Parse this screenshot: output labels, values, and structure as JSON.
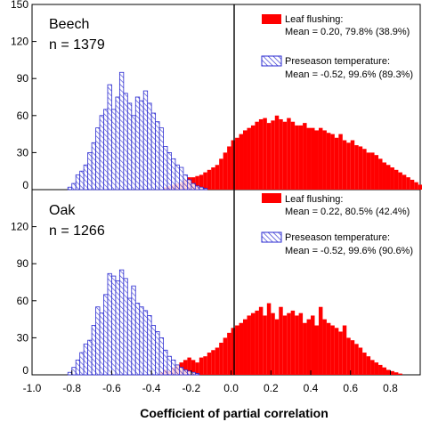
{
  "chart_data": [
    {
      "type": "bar",
      "panel": "top",
      "species_label": "Beech",
      "n_label": "n = 1379",
      "x_range": [
        -1.0,
        1.0
      ],
      "ylim": [
        0,
        150
      ],
      "y_ticks": [
        "0",
        "30",
        "60",
        "90",
        "120",
        "150"
      ],
      "series": [
        {
          "name": "Leaf flushing:",
          "stat": "Mean = 0.20, 79.8% (38.9%)",
          "color": "#ff0000",
          "bin_start": -0.34,
          "bin_width": 0.02,
          "values": [
            2,
            3,
            4,
            5,
            6,
            8,
            10,
            10,
            11,
            12,
            14,
            16,
            18,
            20,
            25,
            30,
            35,
            40,
            42,
            45,
            48,
            50,
            52,
            55,
            57,
            58,
            54,
            56,
            60,
            57,
            55,
            58,
            55,
            52,
            52,
            54,
            50,
            50,
            48,
            50,
            48,
            46,
            45,
            42,
            45,
            40,
            38,
            40,
            36,
            35,
            33,
            30,
            30,
            28,
            25,
            22,
            20,
            18,
            16,
            14,
            12,
            10,
            8,
            6,
            4
          ]
        },
        {
          "name": "Preseason temperature:",
          "stat": "Mean = -0.52, 99.6% (89.3%)",
          "color": "#3333cc",
          "bin_start": -0.82,
          "bin_width": 0.02,
          "values": [
            2,
            5,
            12,
            15,
            20,
            30,
            38,
            50,
            60,
            65,
            85,
            65,
            75,
            95,
            78,
            70,
            60,
            75,
            72,
            80,
            70,
            62,
            55,
            50,
            35,
            30,
            25,
            20,
            18,
            12,
            8,
            5,
            3,
            2,
            1
          ]
        }
      ]
    },
    {
      "type": "bar",
      "panel": "bottom",
      "species_label": "Oak",
      "n_label": "n = 1266",
      "x_range": [
        -1.0,
        1.0
      ],
      "ylim": [
        0,
        150
      ],
      "y_ticks": [
        "0",
        "30",
        "60",
        "90",
        "120"
      ],
      "series": [
        {
          "name": "Leaf flushing:",
          "stat": "Mean = 0.22, 80.5% (42.4%)",
          "color": "#ff0000",
          "bin_start": -0.36,
          "bin_width": 0.02,
          "values": [
            2,
            4,
            3,
            6,
            8,
            10,
            12,
            14,
            12,
            10,
            14,
            15,
            18,
            20,
            22,
            26,
            30,
            34,
            38,
            40,
            42,
            45,
            48,
            50,
            52,
            55,
            48,
            58,
            50,
            45,
            55,
            48,
            50,
            52,
            48,
            50,
            42,
            45,
            48,
            40,
            55,
            45,
            42,
            40,
            38,
            35,
            40,
            30,
            28,
            25,
            22,
            18,
            15,
            12,
            10,
            8,
            6,
            4,
            3,
            2,
            1
          ]
        },
        {
          "name": "Preseason temperature:",
          "stat": "Mean = -0.52, 99.6% (90.6%)",
          "color": "#3333cc",
          "bin_start": -0.82,
          "bin_width": 0.02,
          "values": [
            2,
            6,
            12,
            18,
            25,
            28,
            40,
            55,
            50,
            65,
            82,
            80,
            76,
            85,
            78,
            62,
            72,
            58,
            55,
            52,
            48,
            40,
            35,
            30,
            20,
            15,
            12,
            8,
            6,
            4,
            3,
            2,
            1
          ]
        }
      ]
    }
  ],
  "x_axis": {
    "label": "Coefficient of partial correlation",
    "ticks": [
      "-1.0",
      "-0.8",
      "-0.6",
      "-0.4",
      "-0.2",
      "0.0",
      "0.2",
      "0.4",
      "0.6",
      "0.8"
    ]
  }
}
